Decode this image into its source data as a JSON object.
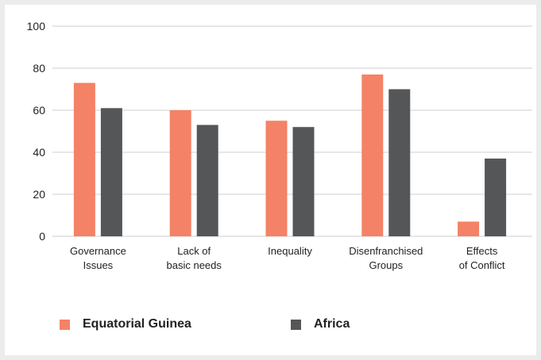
{
  "chart_data": {
    "type": "bar",
    "categories": [
      [
        "Governance",
        "Issues"
      ],
      [
        "Lack of",
        "basic needs"
      ],
      [
        "Inequality"
      ],
      [
        "Disenfranchised",
        "Groups"
      ],
      [
        "Effects",
        "of Conflict"
      ]
    ],
    "series": [
      {
        "name": "Equatorial Guinea",
        "color": "#f48266",
        "values": [
          73,
          60,
          55,
          77,
          7
        ]
      },
      {
        "name": "Africa",
        "color": "#555657",
        "values": [
          61,
          53,
          52,
          70,
          37
        ]
      }
    ],
    "ylim": [
      0,
      100
    ],
    "yticks": [
      0,
      20,
      40,
      60,
      80,
      100
    ],
    "grid": true,
    "legend_position": "bottom"
  },
  "legend": {
    "series_1": "Equatorial Guinea",
    "series_2": "Africa",
    "color_1": "#f48266",
    "color_2": "#555657"
  }
}
